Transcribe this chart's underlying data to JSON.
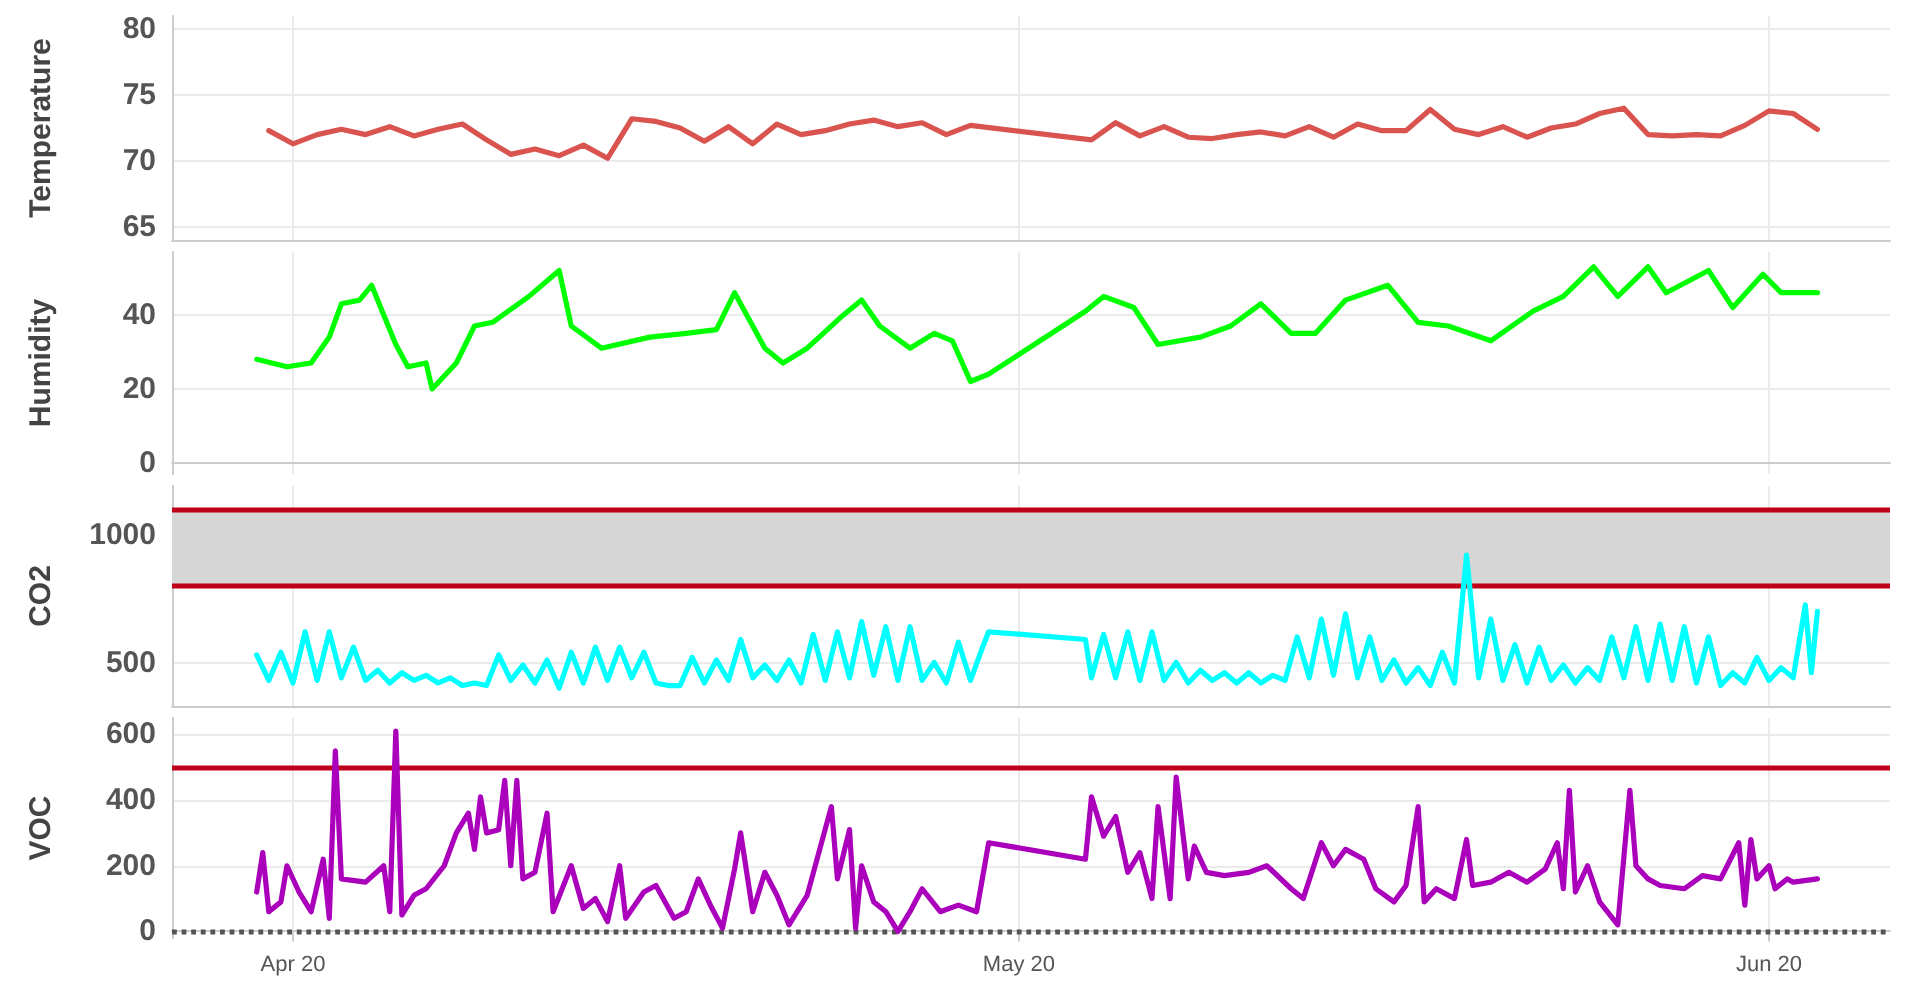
{
  "chart_data": [
    {
      "type": "line",
      "ylabel": "Temperature",
      "xlim": [
        "--04-15",
        "--06-25"
      ],
      "xticks": [
        {
          "value": "--04-20",
          "label": "Apr 20"
        },
        {
          "value": "--05-20",
          "label": "May 20"
        },
        {
          "value": "--06-20",
          "label": "Jun 20"
        }
      ],
      "ylim": [
        64,
        81
      ],
      "yticks": [
        65,
        70,
        75,
        80
      ],
      "grid": true,
      "tick_labels": "y",
      "marker": "none",
      "line_style": "solid",
      "x": [
        "--04-19",
        "--04-20",
        "--04-21",
        "--04-22",
        "--04-23",
        "--04-24",
        "--04-25",
        "--04-26",
        "--04-27",
        "--04-28",
        "--04-29",
        "--04-30",
        "--05-01",
        "--05-02",
        "--05-03",
        "--05-04",
        "--05-05",
        "--05-06",
        "--05-07",
        "--05-08",
        "--05-09",
        "--05-10",
        "--05-11",
        "--05-12",
        "--05-13",
        "--05-14",
        "--05-15",
        "--05-16",
        "--05-17",
        "--05-18",
        "--05-23",
        "--05-24",
        "--05-25",
        "--05-26",
        "--05-27",
        "--05-28",
        "--05-29",
        "--05-30",
        "--05-31",
        "--06-01",
        "--06-02",
        "--06-03",
        "--06-04",
        "--06-05",
        "--06-06",
        "--06-07",
        "--06-08",
        "--06-09",
        "--06-10",
        "--06-11",
        "--06-12",
        "--06-13",
        "--06-14",
        "--06-15",
        "--06-16",
        "--06-17",
        "--06-18",
        "--06-19",
        "--06-20",
        "--06-21",
        "--06-22"
      ],
      "series": [
        {
          "color": "#d9534f",
          "values": [
            72.3,
            71.3,
            72.0,
            72.4,
            72.0,
            72.6,
            71.9,
            72.4,
            72.8,
            71.6,
            70.5,
            70.9,
            70.4,
            71.2,
            70.2,
            73.2,
            73.0,
            72.5,
            71.5,
            72.6,
            71.3,
            72.8,
            72.0,
            72.3,
            72.8,
            73.1,
            72.6,
            72.9,
            72.0,
            72.7,
            71.6,
            72.9,
            71.9,
            72.6,
            71.8,
            71.7,
            72.0,
            72.2,
            71.9,
            72.6,
            71.8,
            72.8,
            72.3,
            72.3,
            73.9,
            72.4,
            72.0,
            72.6,
            71.8,
            72.5,
            72.8,
            73.6,
            74.0,
            72.0,
            71.9,
            72.0,
            71.9,
            72.7,
            73.8,
            73.6,
            72.4
          ]
        }
      ]
    },
    {
      "type": "line",
      "ylabel": "Humidity",
      "xlim": [
        "--04-15",
        "--06-25"
      ],
      "xticks": [
        {
          "value": "--04-20",
          "label": "Apr 20"
        },
        {
          "value": "--05-20",
          "label": "May 20"
        },
        {
          "value": "--06-20",
          "label": "Jun 20"
        }
      ],
      "ylim": [
        -3,
        57
      ],
      "yticks": [
        0,
        20,
        40
      ],
      "grid": true,
      "tick_labels": "y",
      "marker": "none",
      "line_style": "solid",
      "x": [
        "--04-18T12:00",
        "--04-19T18:00",
        "--04-20T18:00",
        "--04-21T12:00",
        "--04-22",
        "--04-22T18:00",
        "--04-23T06:00",
        "--04-23T18:00",
        "--04-24T06:00",
        "--04-24T18:00",
        "--04-25T12:00",
        "--04-25T18:00",
        "--04-26T18:00",
        "--04-27T12:00",
        "--04-28T06:00",
        "--04-29T18:00",
        "--05-01",
        "--05-01T12:00",
        "--05-02T18:00",
        "--05-04T18:00",
        "--05-06T06:00",
        "--05-07T12:00",
        "--05-08T06:00",
        "--05-09T12:00",
        "--05-10T06:00",
        "--05-11T06:00",
        "--05-12T18:00",
        "--05-13T12:00",
        "--05-14T06:00",
        "--05-15T12:00",
        "--05-16T12:00",
        "--05-17T06:00",
        "--05-18",
        "--05-18T18:00",
        "--05-22T18:00",
        "--05-23T12:00",
        "--05-24T18:00",
        "--05-25T18:00",
        "--05-27T12:00",
        "--05-28T18:00",
        "--05-30",
        "--05-31T06:00",
        "--06-01T06:00",
        "--06-02T12:00",
        "--06-04T06:00",
        "--06-05T12:00",
        "--06-06T18:00",
        "--06-08T12:00",
        "--06-10T06:00",
        "--06-11T12:00",
        "--06-12T18:00",
        "--06-13T18:00",
        "--06-15",
        "--06-15T18:00",
        "--06-17T12:00",
        "--06-18T12:00",
        "--06-19T18:00",
        "--06-20T12:00",
        "--06-22"
      ],
      "series": [
        {
          "color": "#00ff00",
          "values": [
            28,
            26,
            27,
            34,
            43,
            44,
            48,
            40,
            32,
            26,
            27,
            20,
            27,
            37,
            38,
            45,
            52,
            37,
            31,
            34,
            35,
            36,
            46,
            31,
            27,
            31,
            40,
            44,
            37,
            31,
            35,
            33,
            22,
            24,
            41,
            45,
            42,
            32,
            34,
            37,
            43,
            35,
            35,
            44,
            48,
            38,
            37,
            33,
            41,
            45,
            53,
            45,
            53,
            46,
            52,
            42,
            51,
            46,
            46
          ]
        }
      ]
    },
    {
      "type": "line",
      "ylabel": "CO2",
      "xlim": [
        "--04-15",
        "--06-25"
      ],
      "xticks": [
        {
          "value": "--04-20",
          "label": "Apr 20"
        },
        {
          "value": "--05-20",
          "label": "May 20"
        },
        {
          "value": "--06-20",
          "label": "Jun 20"
        }
      ],
      "ylim": [
        330,
        1190
      ],
      "yticks": [
        500,
        1000
      ],
      "grid": true,
      "tick_labels": "y",
      "marker": "none",
      "line_style": "solid",
      "bands": [
        {
          "axis": "y",
          "from": 800,
          "to": 1100,
          "color": "#d6d6d6"
        }
      ],
      "ref_lines": [
        {
          "axis": "y",
          "value": 800,
          "color": "#c00018",
          "line_style": "solid"
        },
        {
          "axis": "y",
          "value": 1100,
          "color": "#c00018",
          "line_style": "solid"
        }
      ],
      "x": [
        "--04-18T12:00",
        "--04-19",
        "--04-19T12:00",
        "--04-20",
        "--04-20T12:00",
        "--04-21",
        "--04-21T12:00",
        "--04-22",
        "--04-22T12:00",
        "--04-23",
        "--04-23T12:00",
        "--04-24",
        "--04-24T12:00",
        "--04-25",
        "--04-25T12:00",
        "--04-26",
        "--04-26T12:00",
        "--04-27",
        "--04-27T12:00",
        "--04-28",
        "--04-28T12:00",
        "--04-29",
        "--04-29T12:00",
        "--04-30",
        "--04-30T12:00",
        "--05-01",
        "--05-01T12:00",
        "--05-02",
        "--05-02T12:00",
        "--05-03",
        "--05-03T12:00",
        "--05-04",
        "--05-04T12:00",
        "--05-05",
        "--05-05T12:00",
        "--05-06",
        "--05-06T12:00",
        "--05-07",
        "--05-07T12:00",
        "--05-08",
        "--05-08T12:00",
        "--05-09",
        "--05-09T12:00",
        "--05-10",
        "--05-10T12:00",
        "--05-11",
        "--05-11T12:00",
        "--05-12",
        "--05-12T12:00",
        "--05-13",
        "--05-13T12:00",
        "--05-14",
        "--05-14T12:00",
        "--05-15",
        "--05-15T12:00",
        "--05-16",
        "--05-16T12:00",
        "--05-17",
        "--05-17T12:00",
        "--05-18",
        "--05-18T12:00",
        "--05-18T18:00",
        "--05-22T18:00",
        "--05-23",
        "--05-23T12:00",
        "--05-24",
        "--05-24T12:00",
        "--05-25",
        "--05-25T12:00",
        "--05-26",
        "--05-26T12:00",
        "--05-27",
        "--05-27T12:00",
        "--05-28",
        "--05-28T12:00",
        "--05-29",
        "--05-29T12:00",
        "--05-30",
        "--05-30T12:00",
        "--05-31",
        "--05-31T12:00",
        "--06-01",
        "--06-01T12:00",
        "--06-02",
        "--06-02T12:00",
        "--06-03",
        "--06-03T12:00",
        "--06-04",
        "--06-04T12:00",
        "--06-05",
        "--06-05T12:00",
        "--06-06",
        "--06-06T12:00",
        "--06-07",
        "--06-07T12:00",
        "--06-08",
        "--06-08T12:00",
        "--06-09",
        "--06-09T12:00",
        "--06-10",
        "--06-10T12:00",
        "--06-11",
        "--06-11T12:00",
        "--06-12",
        "--06-12T12:00",
        "--06-13",
        "--06-13T12:00",
        "--06-14",
        "--06-14T12:00",
        "--06-15",
        "--06-15T12:00",
        "--06-16",
        "--06-16T12:00",
        "--06-17",
        "--06-17T12:00",
        "--06-18",
        "--06-18T12:00",
        "--06-19",
        "--06-19T12:00",
        "--06-20",
        "--06-20T12:00",
        "--06-21",
        "--06-21T12:00",
        "--06-21T18:00",
        "--06-22"
      ],
      "series": [
        {
          "color": "#00ffff",
          "values": [
            530,
            430,
            540,
            420,
            620,
            430,
            620,
            440,
            560,
            430,
            470,
            420,
            460,
            430,
            450,
            420,
            440,
            410,
            420,
            410,
            530,
            430,
            490,
            420,
            510,
            400,
            540,
            420,
            560,
            430,
            560,
            440,
            540,
            420,
            410,
            410,
            520,
            420,
            510,
            430,
            590,
            440,
            490,
            430,
            510,
            420,
            610,
            430,
            620,
            440,
            660,
            450,
            640,
            430,
            640,
            430,
            500,
            420,
            580,
            430,
            560,
            620,
            590,
            440,
            610,
            440,
            620,
            430,
            620,
            430,
            500,
            420,
            470,
            430,
            460,
            420,
            460,
            420,
            450,
            430,
            600,
            440,
            670,
            450,
            690,
            440,
            600,
            430,
            510,
            420,
            480,
            410,
            540,
            420,
            920,
            440,
            670,
            430,
            570,
            420,
            560,
            430,
            490,
            420,
            480,
            430,
            600,
            440,
            640,
            430,
            650,
            430,
            640,
            420,
            600,
            410,
            460,
            420,
            520,
            430,
            480,
            440,
            725,
            460,
            700
          ]
        }
      ]
    },
    {
      "type": "line",
      "ylabel": "VOC",
      "xlim": [
        "--04-15",
        "--06-25"
      ],
      "xticks": [
        {
          "value": "--04-20",
          "label": "Apr 20"
        },
        {
          "value": "--05-20",
          "label": "May 20"
        },
        {
          "value": "--06-20",
          "label": "Jun 20"
        }
      ],
      "ylim": [
        -20,
        650
      ],
      "yticks": [
        0,
        200,
        400,
        600
      ],
      "grid": true,
      "marker": "none",
      "line_style": "solid",
      "ref_lines": [
        {
          "axis": "y",
          "value": 500,
          "color": "#c00018",
          "line_style": "solid"
        },
        {
          "axis": "y",
          "value": 0,
          "color": "#555555",
          "line_style": "dotted"
        }
      ],
      "x": [
        "--04-18T12:00",
        "--04-18T18:00",
        "--04-19",
        "--04-19T12:00",
        "--04-19T18:00",
        "--04-20T06:00",
        "--04-20T18:00",
        "--04-21T06:00",
        "--04-21T12:00",
        "--04-21T18:00",
        "--04-22",
        "--04-23",
        "--04-23T18:00",
        "--04-24",
        "--04-24T06:00",
        "--04-24T12:00",
        "--04-25",
        "--04-25T12:00",
        "--04-26T06:00",
        "--04-26T18:00",
        "--04-27T06:00",
        "--04-27T12:00",
        "--04-27T18:00",
        "--04-28",
        "--04-28T12:00",
        "--04-28T18:00",
        "--04-29",
        "--04-29T06:00",
        "--04-29T12:00",
        "--04-30",
        "--04-30T12:00",
        "--04-30T18:00",
        "--05-01T12:00",
        "--05-02",
        "--05-02T12:00",
        "--05-03",
        "--05-03T12:00",
        "--05-03T18:00",
        "--05-04T12:00",
        "--05-05",
        "--05-05T18:00",
        "--05-06T06:00",
        "--05-06T18:00",
        "--05-07T06:00",
        "--05-07T18:00",
        "--05-08T06:00",
        "--05-08T12:00",
        "--05-09",
        "--05-09T12:00",
        "--05-10",
        "--05-10T12:00",
        "--05-11T06:00",
        "--05-12T06:00",
        "--05-12T12:00",
        "--05-13",
        "--05-13T06:00",
        "--05-13T12:00",
        "--05-14",
        "--05-14T12:00",
        "--05-15",
        "--05-15T12:00",
        "--05-16",
        "--05-16T18:00",
        "--05-17T12:00",
        "--05-18T06:00",
        "--05-18T18:00",
        "--05-22T18:00",
        "--05-23",
        "--05-23T12:00",
        "--05-24",
        "--05-24T12:00",
        "--05-25",
        "--05-25T12:00",
        "--05-25T18:00",
        "--05-26T06:00",
        "--05-26T12:00",
        "--05-27",
        "--05-27T06:00",
        "--05-27T18:00",
        "--05-28T12:00",
        "--05-29T12:00",
        "--05-30T06:00",
        "--05-31T06:00",
        "--05-31T18:00",
        "--06-01T12:00",
        "--06-02",
        "--06-02T12:00",
        "--06-03T06:00",
        "--06-03T18:00",
        "--06-04T12:00",
        "--06-05",
        "--06-05T12:00",
        "--06-05T18:00",
        "--06-06T06:00",
        "--06-07",
        "--06-07T12:00",
        "--06-07T18:00",
        "--06-08T12:00",
        "--06-09T06:00",
        "--06-10",
        "--06-10T18:00",
        "--06-11T06:00",
        "--06-11T12:00",
        "--06-11T18:00",
        "--06-12",
        "--06-12T12:00",
        "--06-13",
        "--06-13T18:00",
        "--06-14T06:00",
        "--06-14T12:00",
        "--06-15",
        "--06-15T12:00",
        "--06-16T12:00",
        "--06-17T06:00",
        "--06-18",
        "--06-18T18:00",
        "--06-19",
        "--06-19T06:00",
        "--06-19T12:00",
        "--06-20",
        "--06-20T06:00",
        "--06-20T18:00",
        "--06-21",
        "--06-22"
      ],
      "series": [
        {
          "color": "#aa00bb",
          "values": [
            120,
            240,
            60,
            90,
            200,
            120,
            60,
            220,
            40,
            550,
            160,
            150,
            200,
            60,
            610,
            50,
            110,
            130,
            200,
            300,
            360,
            250,
            410,
            300,
            310,
            460,
            200,
            460,
            160,
            180,
            360,
            60,
            200,
            70,
            100,
            30,
            200,
            40,
            120,
            140,
            40,
            60,
            160,
            80,
            10,
            190,
            300,
            60,
            180,
            110,
            20,
            110,
            380,
            160,
            310,
            10,
            200,
            90,
            60,
            0,
            60,
            130,
            60,
            80,
            60,
            270,
            220,
            410,
            290,
            350,
            180,
            240,
            100,
            380,
            100,
            470,
            160,
            260,
            180,
            170,
            180,
            200,
            130,
            100,
            270,
            200,
            250,
            220,
            130,
            90,
            140,
            380,
            90,
            130,
            100,
            280,
            140,
            150,
            180,
            150,
            190,
            270,
            130,
            430,
            120,
            200,
            90,
            20,
            430,
            200,
            160,
            140,
            130,
            170,
            160,
            270,
            80,
            280,
            160,
            200,
            130,
            160,
            150,
            160
          ]
        }
      ]
    }
  ]
}
